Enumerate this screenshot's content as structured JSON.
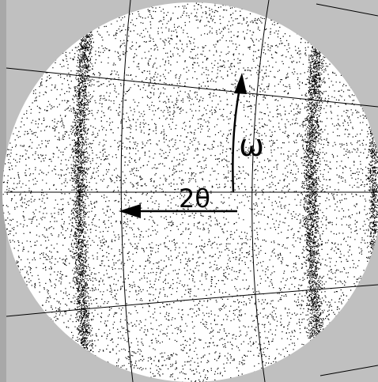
{
  "labels": {
    "omega": "ω",
    "two_theta": "2θ"
  }
}
